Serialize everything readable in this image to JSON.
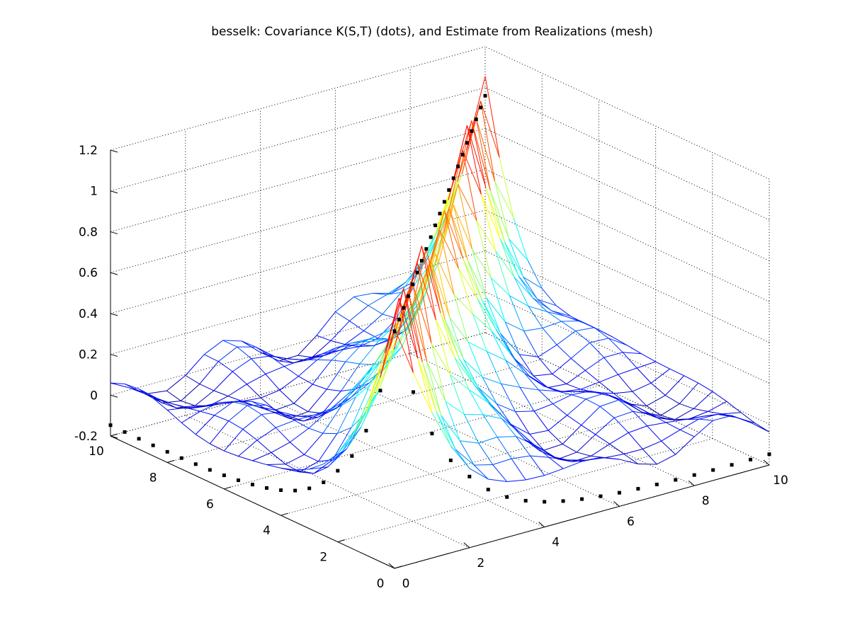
{
  "chart_data": {
    "type": "surface",
    "title": "besselk: Covariance K(S,T) (dots), and Estimate from Realizations (mesh)",
    "xlabel": "",
    "ylabel": "",
    "zlabel": "",
    "xlim": [
      0,
      10
    ],
    "ylim": [
      0,
      10
    ],
    "zlim": [
      -0.2,
      1.2
    ],
    "x_ticks": [
      "0",
      "2",
      "4",
      "6",
      "8",
      "10"
    ],
    "y_ticks": [
      "0",
      "2",
      "4",
      "6",
      "8",
      "10"
    ],
    "z_ticks": [
      "-0.2",
      "0",
      "0.2",
      "0.4",
      "0.6",
      "0.8",
      "1",
      "1.2"
    ],
    "grid": true,
    "colormap": "jet",
    "dots_color": "#000000",
    "series": [
      {
        "role": "dots",
        "function": "K(S,T)",
        "peak": 1.0,
        "samples": 21
      },
      {
        "role": "mesh",
        "function": "estimate",
        "samples": 21
      }
    ]
  }
}
